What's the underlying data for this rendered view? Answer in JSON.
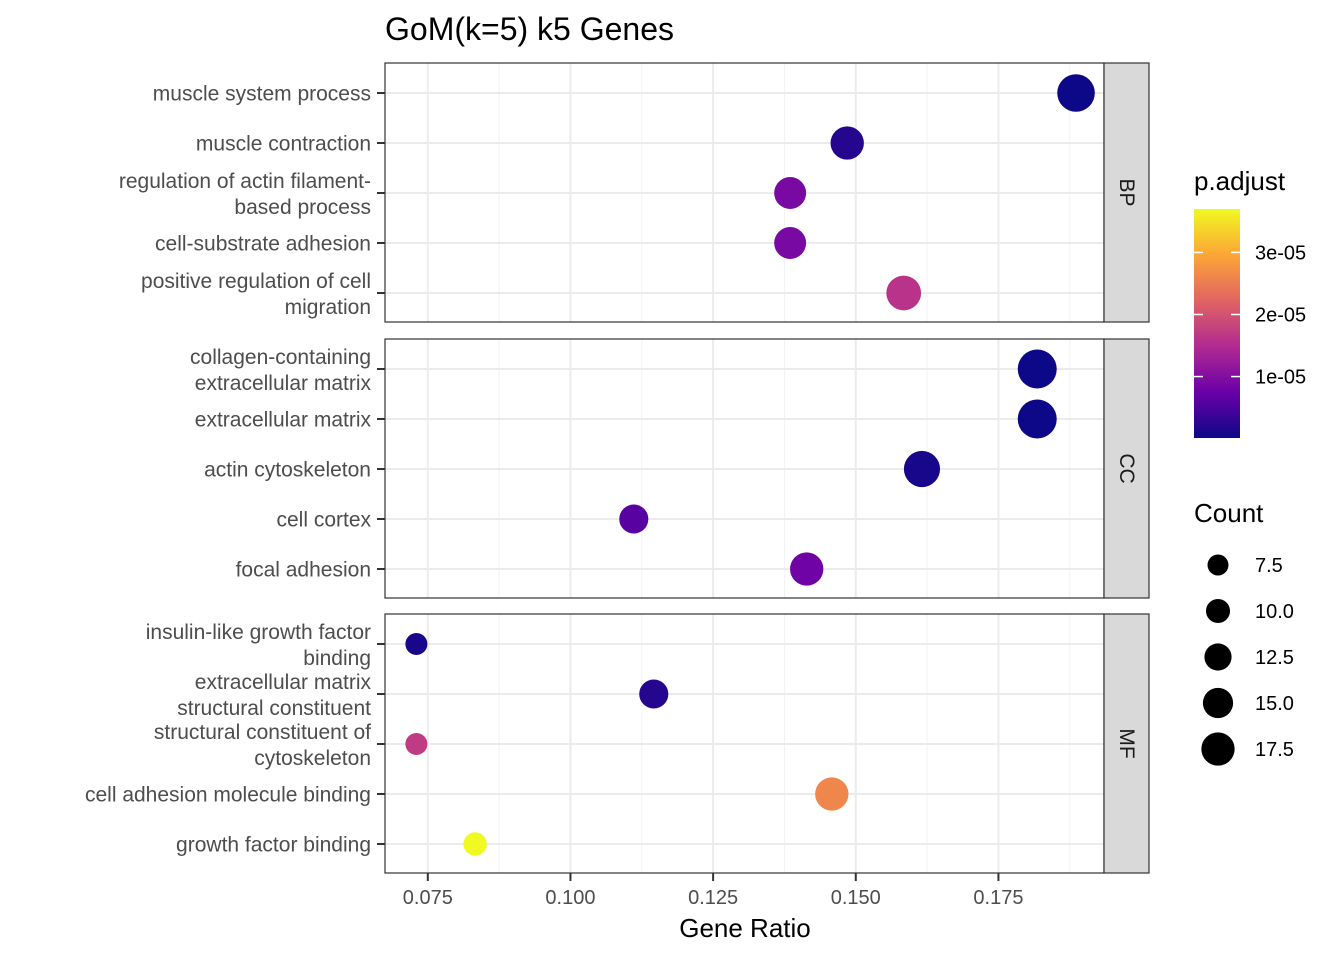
{
  "chart_data": {
    "type": "scatter",
    "title": "GoM(k=5) k5 Genes",
    "xlabel": "Gene Ratio",
    "ylabel": "",
    "xlim": [
      0.0675,
      0.1935
    ],
    "xticks": [
      "0.075",
      "0.100",
      "0.125",
      "0.150",
      "0.175"
    ],
    "xtick_values": [
      0.075,
      0.1,
      0.125,
      0.15,
      0.175
    ],
    "grid": true,
    "facets": [
      {
        "name": "BP",
        "terms": [
          {
            "label": [
              "muscle system process"
            ],
            "gene_ratio": 0.1886,
            "count": 17,
            "p_adjust": 1e-07
          },
          {
            "label": [
              "muscle contraction"
            ],
            "gene_ratio": 0.1485,
            "count": 14,
            "p_adjust": 2e-06
          },
          {
            "label": [
              "regulation of actin filament-",
              "based process"
            ],
            "gene_ratio": 0.1385,
            "count": 13,
            "p_adjust": 9e-06
          },
          {
            "label": [
              "cell-substrate adhesion"
            ],
            "gene_ratio": 0.1385,
            "count": 13,
            "p_adjust": 9e-06
          },
          {
            "label": [
              "positive regulation of cell",
              "migration"
            ],
            "gene_ratio": 0.1584,
            "count": 15,
            "p_adjust": 1.6e-05
          }
        ]
      },
      {
        "name": "CC",
        "terms": [
          {
            "label": [
              "collagen-containing",
              "extracellular matrix"
            ],
            "gene_ratio": 0.1818,
            "count": 18,
            "p_adjust": 1e-07
          },
          {
            "label": [
              "extracellular matrix"
            ],
            "gene_ratio": 0.1818,
            "count": 18,
            "p_adjust": 1e-07
          },
          {
            "label": [
              "actin cytoskeleton"
            ],
            "gene_ratio": 0.1616,
            "count": 16,
            "p_adjust": 1e-06
          },
          {
            "label": [
              "cell cortex"
            ],
            "gene_ratio": 0.1111,
            "count": 11,
            "p_adjust": 6e-06
          },
          {
            "label": [
              "focal adhesion"
            ],
            "gene_ratio": 0.1414,
            "count": 14,
            "p_adjust": 8e-06
          }
        ]
      },
      {
        "name": "MF",
        "terms": [
          {
            "label": [
              "insulin-like growth factor",
              "binding"
            ],
            "gene_ratio": 0.073,
            "count": 6,
            "p_adjust": 1e-06
          },
          {
            "label": [
              "extracellular matrix",
              "structural constituent"
            ],
            "gene_ratio": 0.1146,
            "count": 11,
            "p_adjust": 2e-06
          },
          {
            "label": [
              "structural constituent of",
              "cytoskeleton"
            ],
            "gene_ratio": 0.073,
            "count": 6,
            "p_adjust": 1.7e-05
          },
          {
            "label": [
              "cell adhesion molecule binding"
            ],
            "gene_ratio": 0.1458,
            "count": 14,
            "p_adjust": 2.6e-05
          },
          {
            "label": [
              "growth factor binding"
            ],
            "gene_ratio": 0.0833,
            "count": 7,
            "p_adjust": 3.7e-05
          }
        ]
      }
    ],
    "color_legend": {
      "title": "p.adjust",
      "min": 1e-07,
      "max": 3.7e-05,
      "ticks": [
        {
          "value": 1e-05,
          "label": "1e-05"
        },
        {
          "value": 2e-05,
          "label": "2e-05"
        },
        {
          "value": 3e-05,
          "label": "3e-05"
        }
      ],
      "palette": [
        "#0d0887",
        "#6a00a8",
        "#b12a90",
        "#e16462",
        "#fca636",
        "#f0f921"
      ]
    },
    "size_legend": {
      "title": "Count",
      "items": [
        {
          "value": 7.5,
          "label": "7.5"
        },
        {
          "value": 10.0,
          "label": "10.0"
        },
        {
          "value": 12.5,
          "label": "12.5"
        },
        {
          "value": 15.0,
          "label": "15.0"
        },
        {
          "value": 17.5,
          "label": "17.5"
        }
      ],
      "count_range": [
        6,
        18
      ]
    },
    "legend_position": "right"
  }
}
